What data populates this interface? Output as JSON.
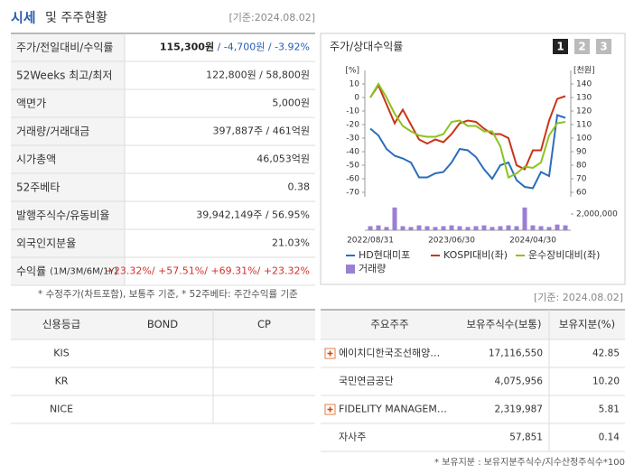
{
  "header": {
    "title_main": "시세",
    "title_rest": "및 주주현황",
    "date": "[기준:2024.08.02]"
  },
  "price_table": {
    "rows": [
      {
        "label": "주가/전일대비/수익률",
        "values": [
          {
            "text": "115,300원",
            "color": "#222",
            "bold": true
          },
          {
            "text": " / -4,700원",
            "color": "#2a5db0"
          },
          {
            "text": " / -3.92%",
            "color": "#2a5db0"
          }
        ]
      },
      {
        "label": "52Weeks 최고/최저",
        "values": [
          {
            "text": "122,800원 / 58,800원",
            "color": "#333"
          }
        ]
      },
      {
        "label": "액면가",
        "values": [
          {
            "text": "5,000원",
            "color": "#333"
          }
        ]
      },
      {
        "label": "거래량/거래대금",
        "values": [
          {
            "text": "397,887주 / 461억원",
            "color": "#333"
          }
        ]
      },
      {
        "label": "시가총액",
        "values": [
          {
            "text": "46,053억원",
            "color": "#333"
          }
        ]
      },
      {
        "label": "52주베타",
        "values": [
          {
            "text": "0.38",
            "color": "#333"
          }
        ]
      },
      {
        "label": "발행주식수/유동비율",
        "values": [
          {
            "text": "39,942,149주 / 56.95%",
            "color": "#333"
          }
        ]
      },
      {
        "label": "외국인지분율",
        "values": [
          {
            "text": "21.03%",
            "color": "#333"
          }
        ]
      },
      {
        "label": "수익률",
        "label_note": "(1M/3M/6M/1Y)",
        "values": [
          {
            "text": "+23.32%/ ",
            "color": "#d0312d"
          },
          {
            "text": "+57.51%/ ",
            "color": "#d0312d"
          },
          {
            "text": "+69.31%/ ",
            "color": "#d0312d"
          },
          {
            "text": "+23.32%",
            "color": "#d0312d"
          }
        ]
      }
    ],
    "footnote": "* 수정주가(차트포함), 보통주 기준, * 52주베타: 주간수익률 기준"
  },
  "chart_data": {
    "type": "line",
    "title": "주가/상대수익률",
    "buttons": [
      "1",
      "2",
      "3"
    ],
    "categories": [
      "2022/08/31",
      null,
      null,
      null,
      null,
      null,
      null,
      null,
      null,
      null,
      "2023/06/30",
      null,
      null,
      null,
      null,
      null,
      null,
      null,
      null,
      null,
      "2024/04/30",
      null,
      null,
      null,
      null
    ],
    "ylabel": "[%]",
    "ylim": [
      -70,
      10
    ],
    "yticks": [
      10,
      0,
      -10,
      -20,
      -30,
      -40,
      -50,
      -60,
      -70
    ],
    "y2label": "[천원]",
    "y2lim": [
      60,
      140
    ],
    "y2ticks": [
      140,
      130,
      120,
      110,
      100,
      90,
      80,
      70,
      60
    ],
    "series": [
      {
        "name": "HD현대미포",
        "color": "#2a6ebb",
        "axis": "y2",
        "values": [
          107,
          102,
          92,
          87,
          85,
          82,
          71,
          71,
          74,
          75,
          82,
          92,
          91,
          86,
          77,
          70,
          80,
          82,
          69,
          64,
          63,
          75,
          72,
          117,
          115
        ]
      },
      {
        "name": "KOSPI대비(좌)",
        "color": "#c8351a",
        "axis": "y",
        "values": [
          0,
          9,
          -5,
          -19,
          -9,
          -20,
          -31,
          -34,
          -31,
          -33,
          -27,
          -19,
          -17,
          -18,
          -23,
          -27,
          -27,
          -30,
          -50,
          -53,
          -39,
          -39,
          -17,
          -1,
          1
        ]
      },
      {
        "name": "운수장비대비(좌)",
        "color": "#8dc21f",
        "axis": "y",
        "values": [
          0,
          10,
          0,
          -12,
          -21,
          -25,
          -28,
          -29,
          -29,
          -27,
          -18,
          -17,
          -21,
          -21,
          -25,
          -25,
          -36,
          -59,
          -56,
          -51,
          -52,
          -48,
          -28,
          -19,
          -18
        ]
      }
    ],
    "volume": {
      "name": "거래량",
      "color": "#9b7fd4",
      "ylim": [
        0,
        3000000
      ],
      "yticks": [
        {
          "value": 2000000,
          "label": "2,000,000"
        }
      ],
      "values": [
        500000,
        600000,
        400000,
        2800000,
        500000,
        400000,
        600000,
        500000,
        400000,
        500000,
        600000,
        500000,
        400000,
        500000,
        600000,
        400000,
        500000,
        600000,
        500000,
        2800000,
        600000,
        500000,
        400000,
        700000,
        600000
      ]
    }
  },
  "date2": "[기준: 2024.08.02]",
  "credit_table": {
    "headers": [
      "신용등급",
      "BOND",
      "CP"
    ],
    "rows": [
      "KIS",
      "KR",
      "NICE"
    ]
  },
  "holder_table": {
    "headers": [
      "주요주주",
      "보유주식수(보통)",
      "보유지분(%)"
    ],
    "rows": [
      [
        "에이치디한국조선해양…",
        "17,116,550",
        "42.85"
      ],
      [
        "국민연금공단",
        "4,075,956",
        "10.20"
      ],
      [
        "FIDELITY MANAGEM…",
        "2,319,987",
        "5.81"
      ],
      [
        "자사주",
        "57,851",
        "0.14"
      ]
    ],
    "footnote": "* 보유지분 : 보유지분주식수/지수산정주식수*100"
  }
}
